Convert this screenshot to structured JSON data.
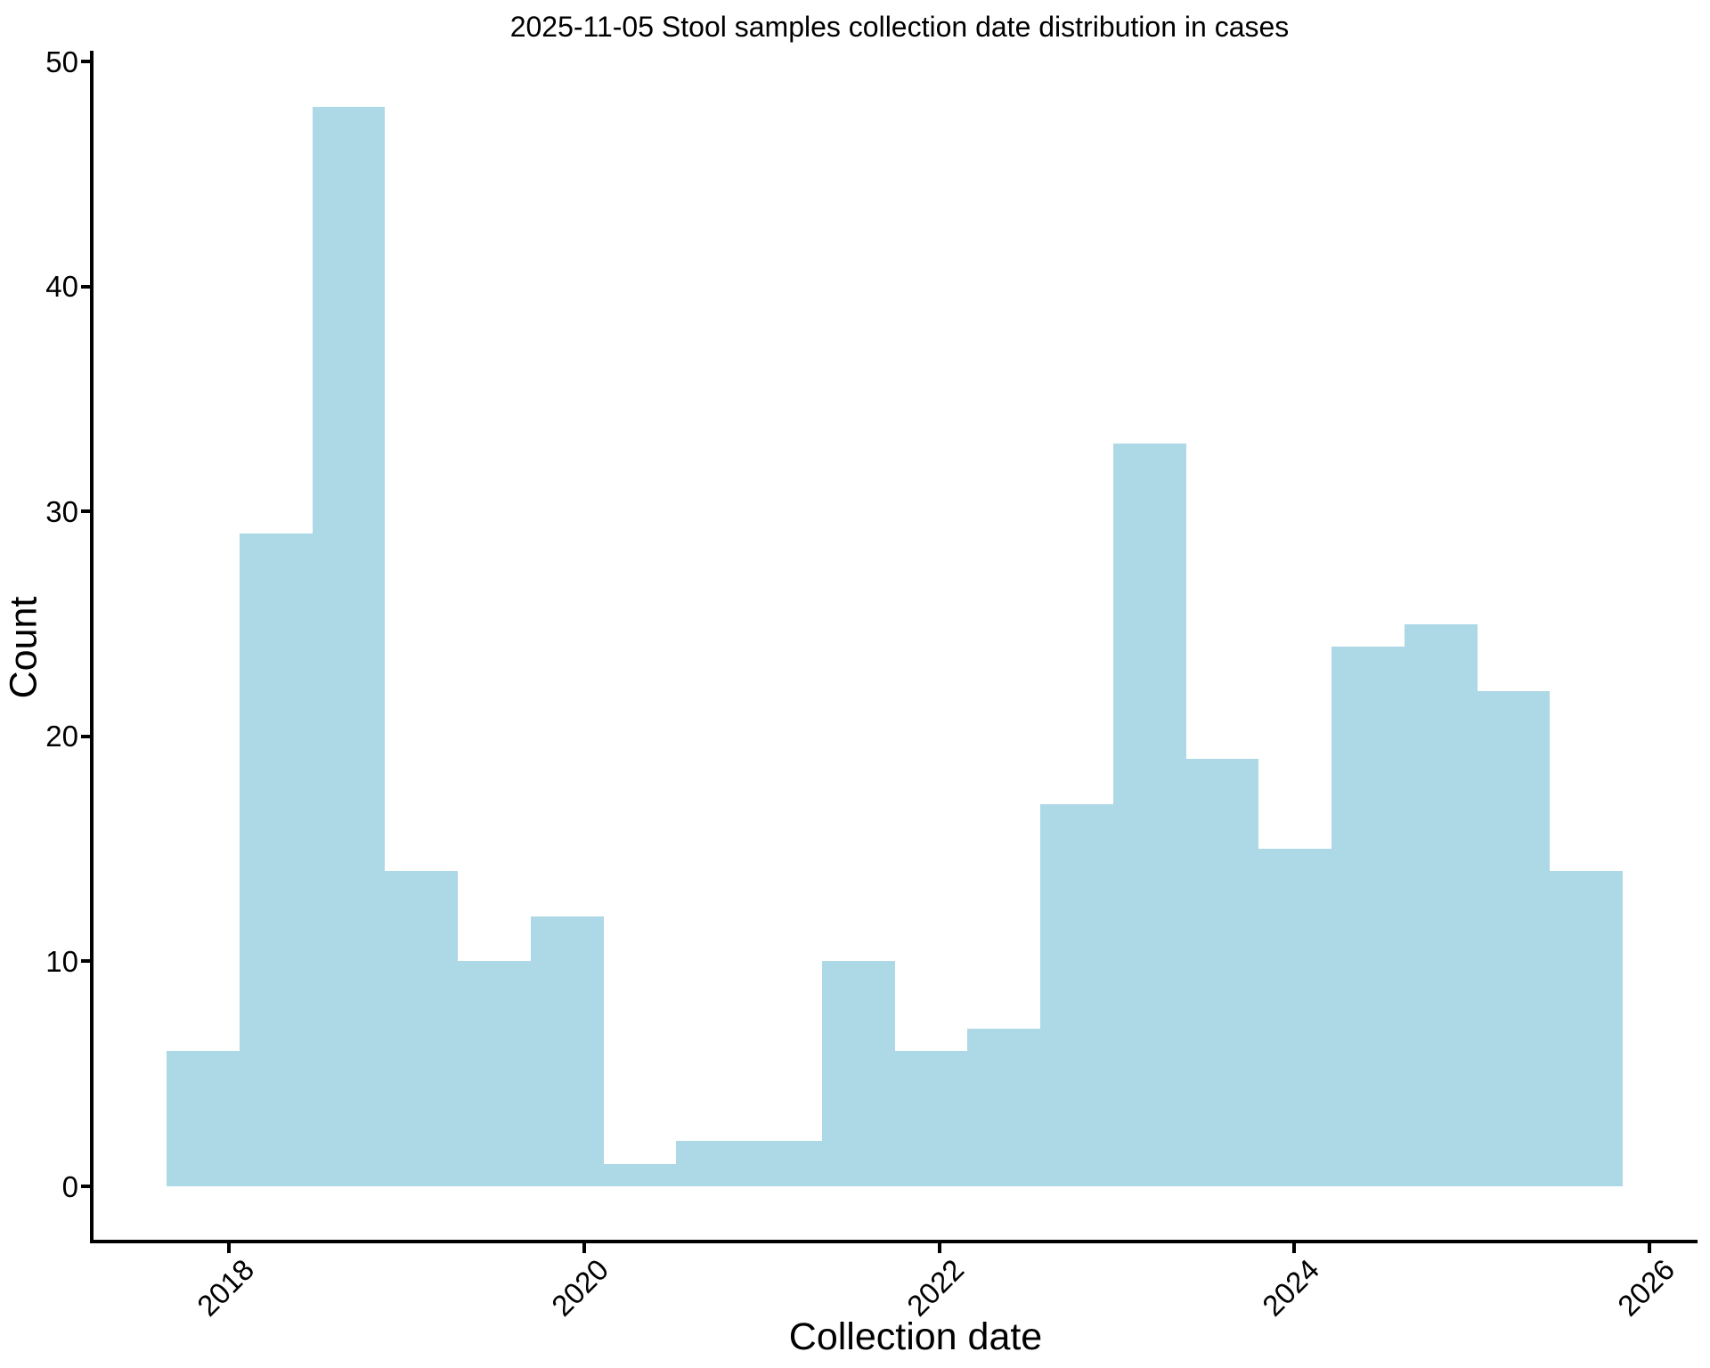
{
  "chart_data": {
    "type": "histogram",
    "title": "2025-11-05 Stool samples collection date distribution in cases",
    "xlabel": "Collection date",
    "ylabel": "Count",
    "x_ticks": [
      2018,
      2020,
      2022,
      2024,
      2026
    ],
    "y_ticks": [
      0,
      10,
      20,
      30,
      40,
      50
    ],
    "ylim": [
      0,
      50
    ],
    "xlim_years": [
      2017.24,
      2026.26
    ],
    "grid": false,
    "legend_position": "none",
    "bar_color": "#ADD8E6",
    "axis_color": "#000000",
    "bin_width_years": 0.41,
    "bin_edges_years": [
      2017.649,
      2018.059,
      2018.469,
      2018.879,
      2019.289,
      2019.699,
      2020.109,
      2020.519,
      2020.929,
      2021.339,
      2021.749,
      2022.159,
      2022.569,
      2022.979,
      2023.389,
      2023.799,
      2024.209,
      2024.619,
      2025.029,
      2025.439,
      2025.849
    ],
    "counts": [
      6,
      29,
      48,
      14,
      10,
      12,
      1,
      2,
      2,
      10,
      6,
      7,
      17,
      33,
      19,
      15,
      24,
      25,
      22,
      14
    ]
  }
}
